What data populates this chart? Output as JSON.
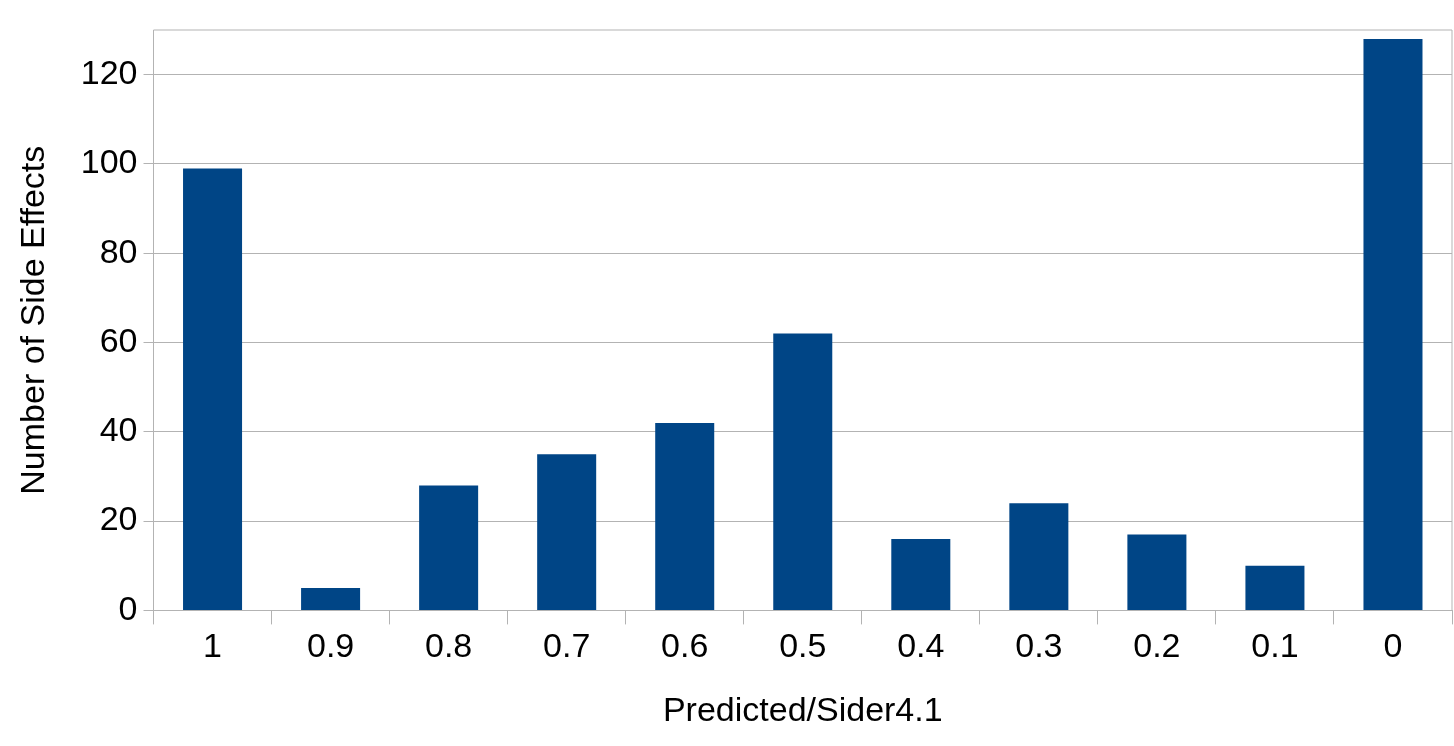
{
  "chart_data": {
    "type": "bar",
    "xlabel": "Predicted/Sider4.1",
    "ylabel": "Number of Side Effects",
    "categories": [
      "1",
      "0.9",
      "0.8",
      "0.7",
      "0.6",
      "0.5",
      "0.4",
      "0.3",
      "0.2",
      "0.1",
      "0"
    ],
    "values": [
      99,
      5,
      28,
      35,
      42,
      62,
      16,
      24,
      17,
      10,
      128
    ],
    "color": "#004586",
    "ylim": [
      0,
      130
    ],
    "yticks": [
      0,
      20,
      40,
      60,
      80,
      100,
      120
    ],
    "grid": "y"
  }
}
